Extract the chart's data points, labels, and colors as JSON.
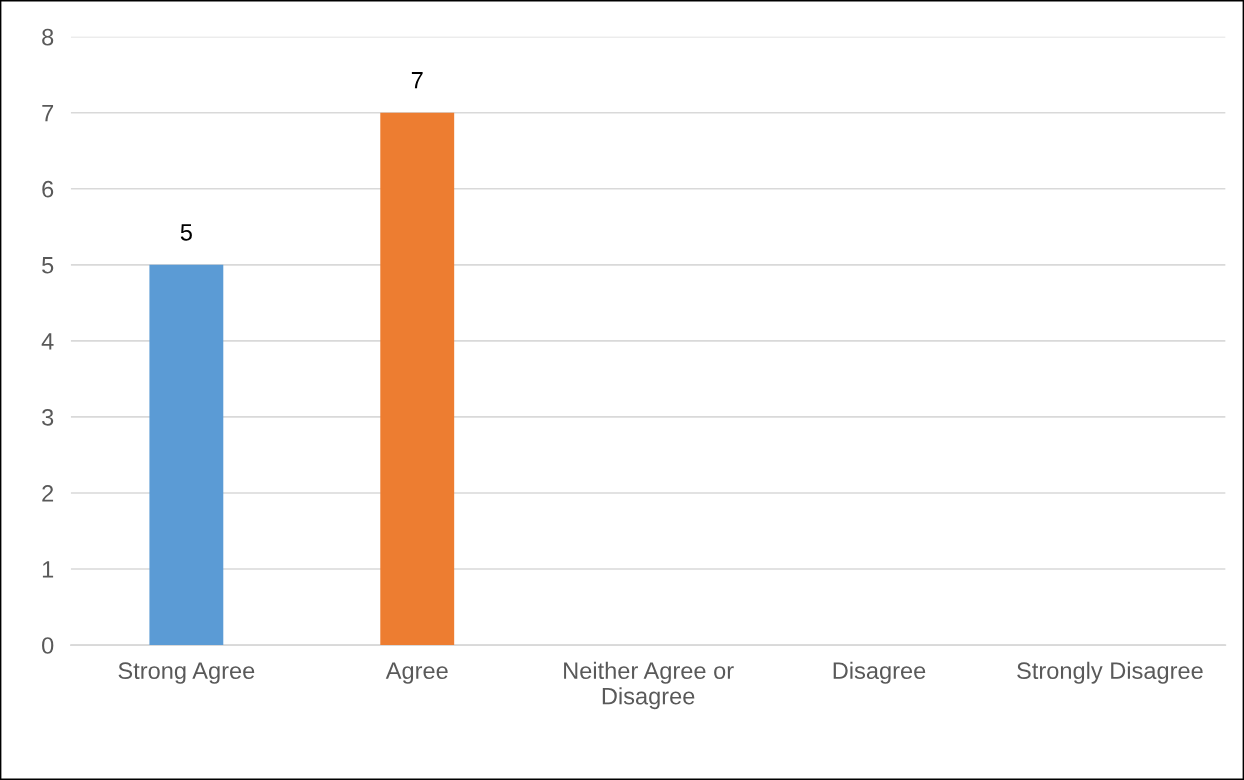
{
  "chart_data": {
    "type": "bar",
    "categories": [
      "Strong Agree",
      "Agree",
      "Neither Agree or Disagree",
      "Disagree",
      "Strongly Disagree"
    ],
    "values": [
      5,
      7,
      0,
      0,
      0
    ],
    "colors": [
      "#5b9bd5",
      "#ed7d31",
      "#a5a5a5",
      "#ffc000",
      "#4472c4"
    ],
    "value_labels": [
      "5",
      "7",
      null,
      null,
      null
    ],
    "ylim": [
      0,
      8
    ],
    "yticks": [
      0,
      1,
      2,
      3,
      4,
      5,
      6,
      7,
      8
    ],
    "grid": "y",
    "legend": false
  }
}
